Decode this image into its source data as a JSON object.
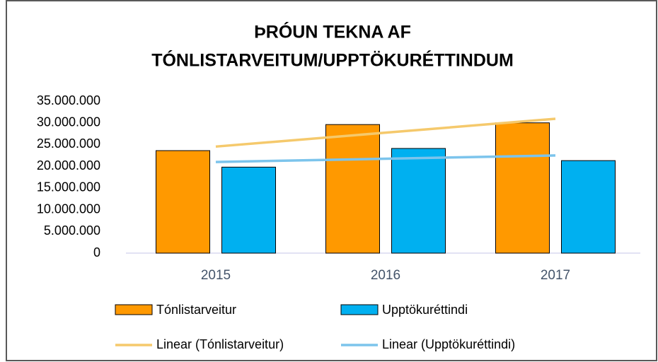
{
  "chart_data": {
    "type": "bar",
    "title": [
      "ÞRÓUN TEKNA AF",
      "TÓNLISTARVEITUM/UPPTÖKURÉTTINDUM"
    ],
    "categories": [
      "2015",
      "2016",
      "2017"
    ],
    "series": [
      {
        "name": "Tónlistarveitur",
        "color": "#ff9900",
        "values": [
          23600000,
          29600000,
          30000000
        ]
      },
      {
        "name": "Upptökuréttindi",
        "color": "#00b0f0",
        "values": [
          19800000,
          24100000,
          21300000
        ]
      }
    ],
    "trendlines": [
      {
        "name": "Linear (Tónlistarveitur)",
        "color": "#f5c96c",
        "values": [
          24530000,
          27730000,
          30930000
        ]
      },
      {
        "name": "Linear (Upptökuréttindi)",
        "color": "#7cc4ec",
        "values": [
          20980000,
          21730000,
          22480000
        ]
      }
    ],
    "ylim": [
      0,
      35000000
    ],
    "yticks": [
      0,
      {
        "value": 5000000,
        "label": "5.000.000"
      },
      {
        "value": 10000000,
        "label": "10.000.000"
      },
      {
        "value": 15000000,
        "label": "15.000.000"
      },
      {
        "value": 20000000,
        "label": "20.000.000"
      },
      {
        "value": 25000000,
        "label": "25.000.000"
      },
      {
        "value": 30000000,
        "label": "30.000.000"
      },
      {
        "value": 35000000,
        "label": "35.000.000"
      }
    ],
    "grid": false
  }
}
